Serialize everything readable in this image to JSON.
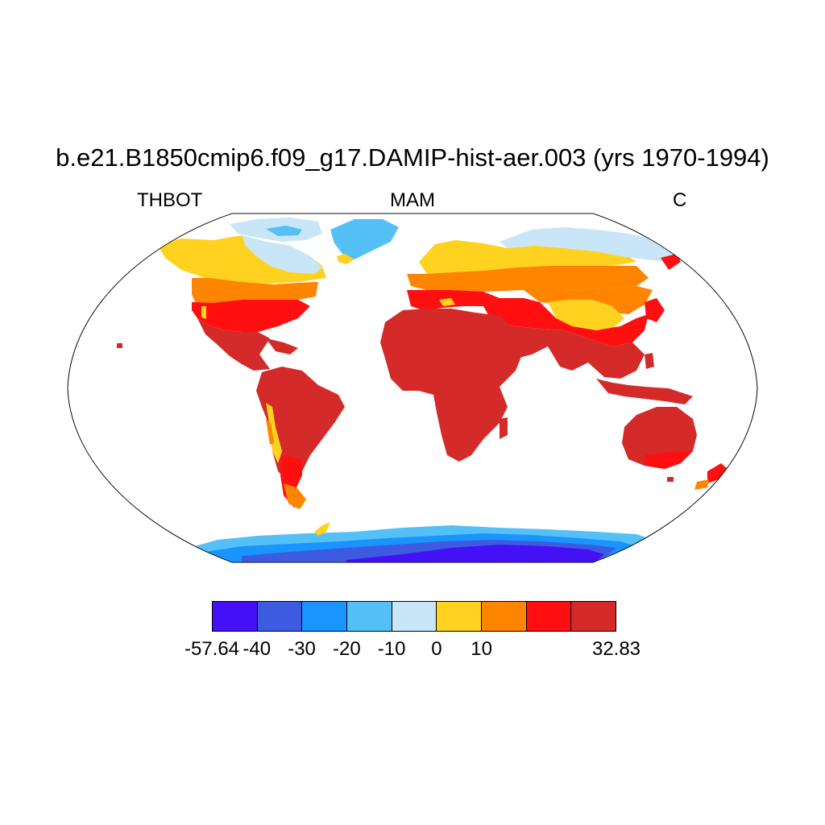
{
  "figure": {
    "title": "b.e21.B1850cmip6.f09_g17.DAMIP-hist-aer.003 (yrs 1970-1994)",
    "variable": "THBOT",
    "season": "MAM",
    "units": "C"
  },
  "map": {
    "projection": "robinson",
    "field": "near-surface air temperature over land"
  },
  "colorbar": {
    "colors": [
      "#4410f6",
      "#3c5be0",
      "#1a94ff",
      "#55c0f6",
      "#c8e6f7",
      "#ffd21f",
      "#ff8400",
      "#ff0f0f",
      "#d42a2a"
    ],
    "labels": [
      {
        "text": "-57.64",
        "boundary": 0
      },
      {
        "text": "-40",
        "boundary": 1
      },
      {
        "text": "-30",
        "boundary": 2
      },
      {
        "text": "-20",
        "boundary": 3
      },
      {
        "text": "-10",
        "boundary": 4
      },
      {
        "text": "0",
        "boundary": 5
      },
      {
        "text": "10",
        "boundary": 6
      },
      {
        "text": "32.83",
        "boundary": 9
      }
    ]
  }
}
